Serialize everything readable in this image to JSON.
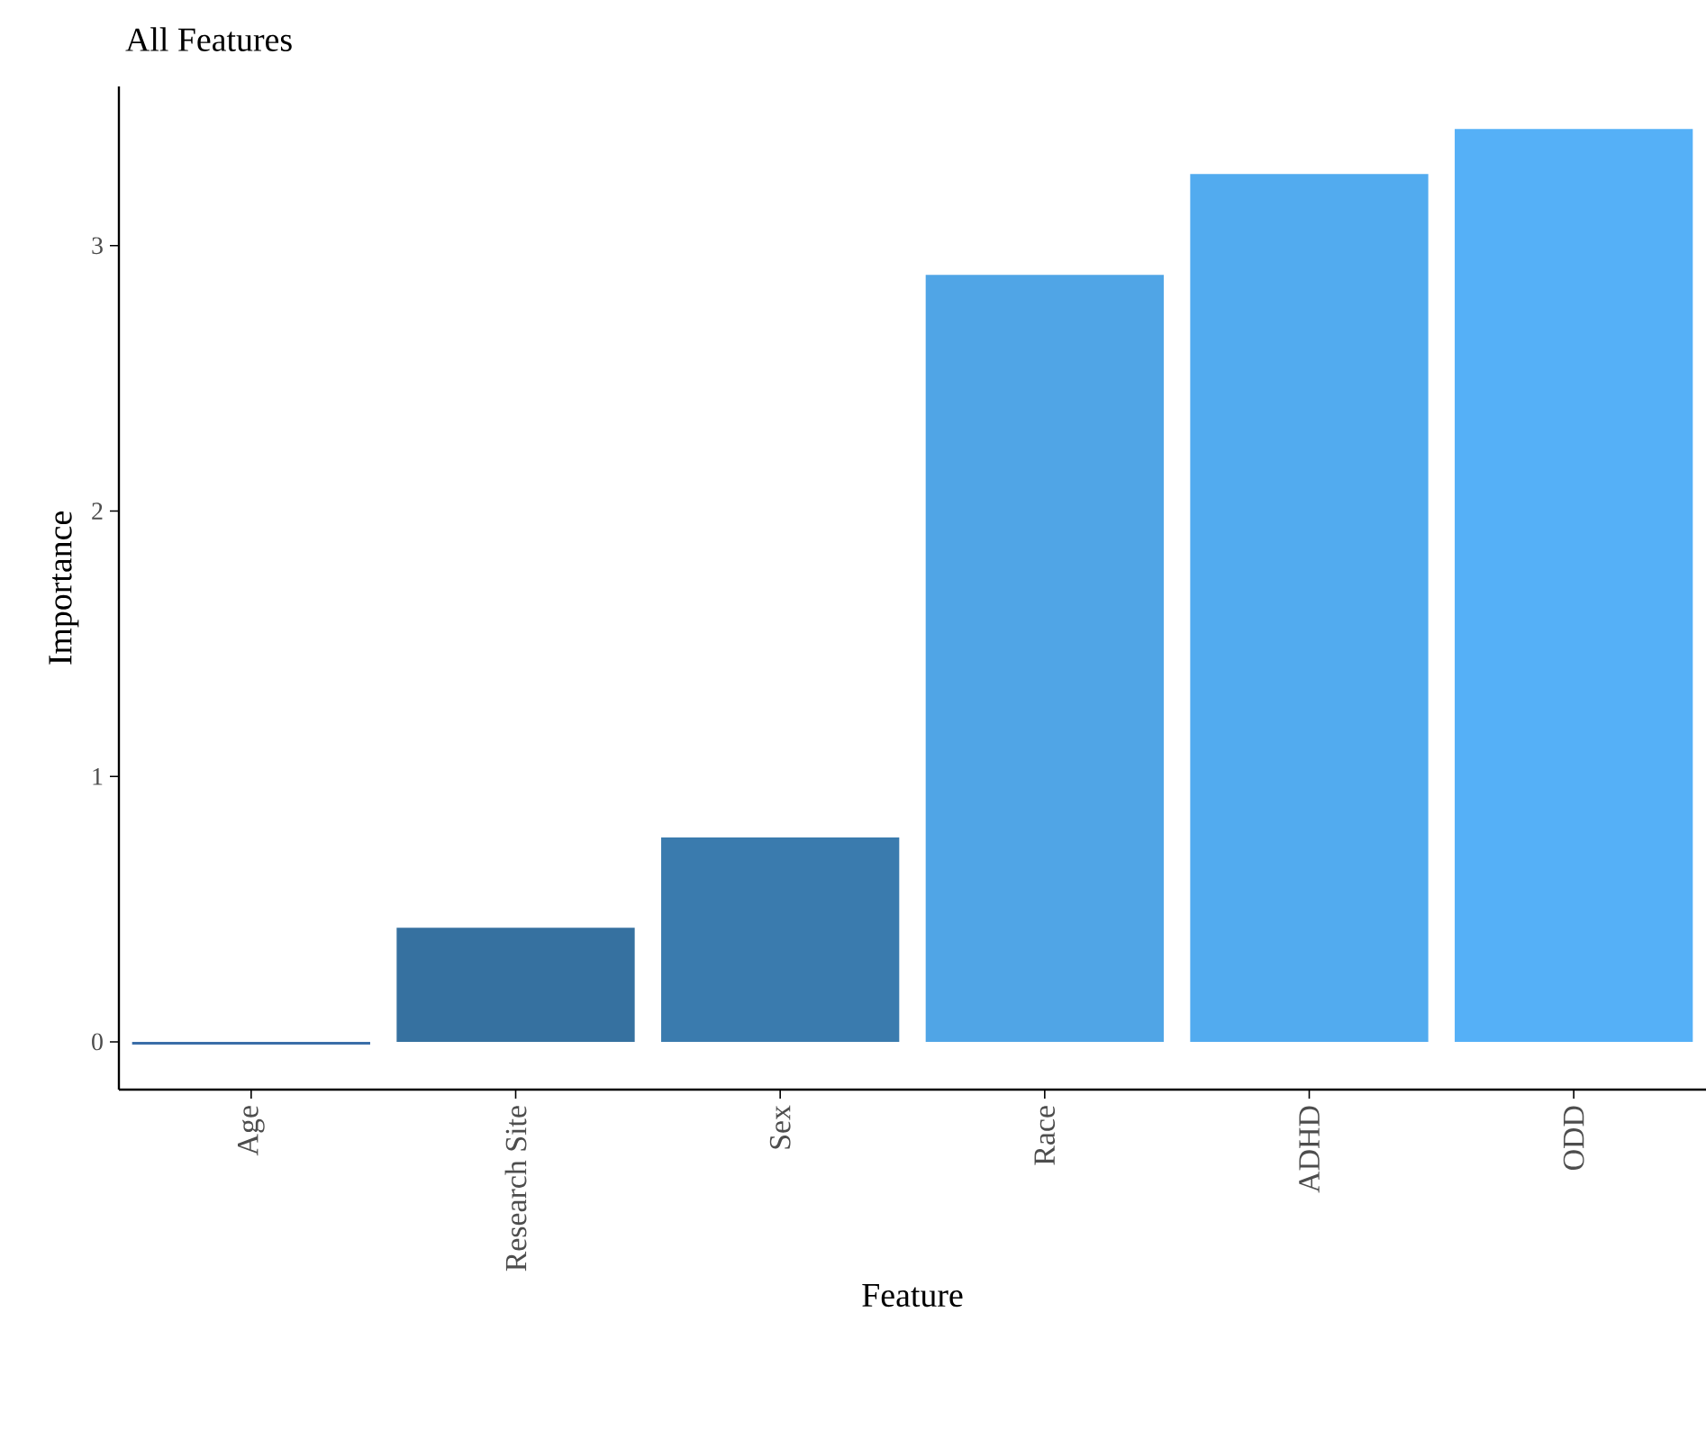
{
  "chart_data": {
    "type": "bar",
    "title": "All Features",
    "xlabel": "Feature",
    "ylabel": "Importance",
    "categories": [
      "Age",
      "Research Site",
      "Sex",
      "Race",
      "ADHD",
      "ODD"
    ],
    "values": [
      -0.01,
      0.43,
      0.77,
      2.89,
      3.27,
      3.44
    ],
    "colors": [
      "#3a6ea8",
      "#3671a0",
      "#3a7bae",
      "#50a5e6",
      "#52abef",
      "#55b0f7"
    ],
    "ylim": [
      -0.18,
      3.6
    ],
    "yticks": [
      0,
      1,
      2,
      3
    ],
    "grid": false
  }
}
